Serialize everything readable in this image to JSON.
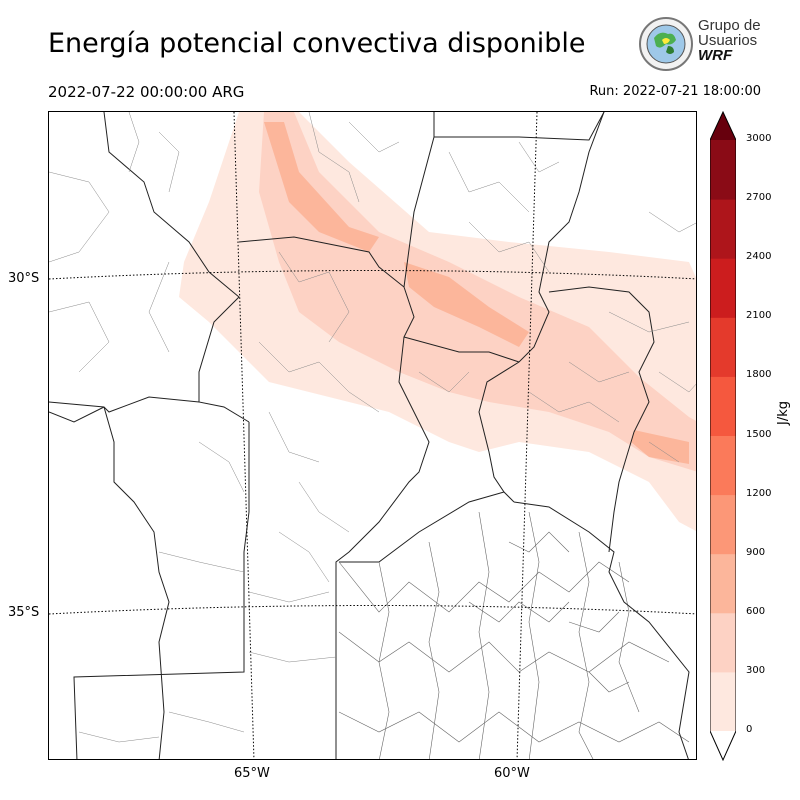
{
  "title": "Energía potencial convectiva disponible",
  "valid_time": "2022-07-22 00:00:00 ARG",
  "run_time": "Run: 2022-07-21 18:00:00",
  "logo": {
    "line1": "Grupo de",
    "line2": "Usuarios",
    "line3": "WRF"
  },
  "map": {
    "lat_labels": [
      "30°S",
      "35°S"
    ],
    "lon_labels": [
      "65°W",
      "60°W"
    ]
  },
  "colorbar": {
    "unit": "J/kg",
    "ticks": [
      "3000",
      "2700",
      "2400",
      "2100",
      "1800",
      "1500",
      "1200",
      "900",
      "600",
      "300",
      "0"
    ],
    "colors": [
      "#fee8df",
      "#fdd2c4",
      "#fcb69b",
      "#fc9777",
      "#fb7a5a",
      "#f5583e",
      "#e43a2c",
      "#cc1d1e",
      "#ae151b",
      "#8a0b16"
    ],
    "extend_color": "#67000d"
  }
}
